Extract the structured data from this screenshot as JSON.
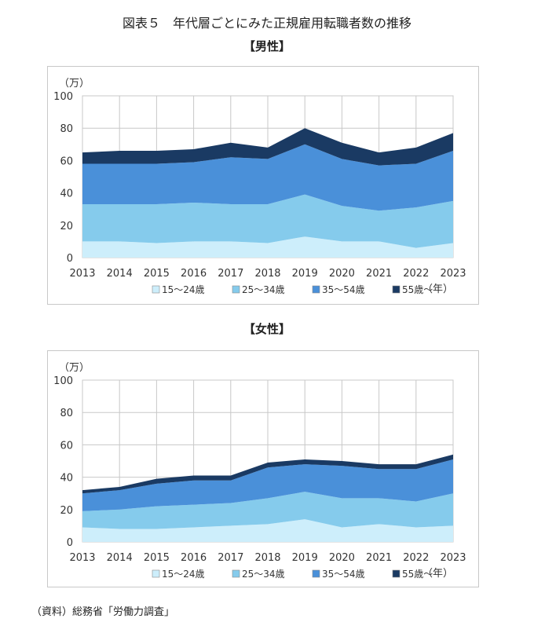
{
  "page": {
    "title": "図表５　年代層ごとにみた正規雇用転職者数の推移",
    "source": "（資料）総務省「労働力調査」"
  },
  "colors": {
    "15~24": "#cdeefb",
    "25~34": "#85cbec",
    "35~54": "#4a90d9",
    "55+": "#1a3a63",
    "grid": "#c8c8c8"
  },
  "chart_data": [
    {
      "type": "area",
      "stacked": true,
      "title": "【男性】",
      "unit_label": "（万）",
      "x_unit_label": "（年）",
      "categories": [
        "2013",
        "2014",
        "2015",
        "2016",
        "2017",
        "2018",
        "2019",
        "2020",
        "2021",
        "2022",
        "2023"
      ],
      "ylim": [
        0,
        100
      ],
      "yticks": [
        0,
        20,
        40,
        60,
        80,
        100
      ],
      "grid": true,
      "legend_position": "bottom",
      "series": [
        {
          "name": "15～24歳",
          "key": "15~24",
          "values": [
            10,
            10,
            9,
            10,
            10,
            9,
            13,
            10,
            10,
            6,
            9
          ]
        },
        {
          "name": "25～34歳",
          "key": "25~34",
          "values": [
            23,
            23,
            24,
            24,
            23,
            24,
            26,
            22,
            19,
            25,
            26
          ]
        },
        {
          "name": "35～54歳",
          "key": "35~54",
          "values": [
            25,
            25,
            25,
            25,
            29,
            28,
            31,
            29,
            28,
            27,
            31
          ]
        },
        {
          "name": "55歳～",
          "key": "55+",
          "values": [
            7,
            8,
            8,
            8,
            9,
            7,
            10,
            10,
            8,
            10,
            11
          ]
        }
      ]
    },
    {
      "type": "area",
      "stacked": true,
      "title": "【女性】",
      "unit_label": "（万）",
      "x_unit_label": "（年）",
      "categories": [
        "2013",
        "2014",
        "2015",
        "2016",
        "2017",
        "2018",
        "2019",
        "2020",
        "2021",
        "2022",
        "2023"
      ],
      "ylim": [
        0,
        100
      ],
      "yticks": [
        0,
        20,
        40,
        60,
        80,
        100
      ],
      "grid": true,
      "legend_position": "bottom",
      "series": [
        {
          "name": "15～24歳",
          "key": "15~24",
          "values": [
            9,
            8,
            8,
            9,
            10,
            11,
            14,
            9,
            11,
            9,
            10
          ]
        },
        {
          "name": "25～34歳",
          "key": "25~34",
          "values": [
            10,
            12,
            14,
            14,
            14,
            16,
            17,
            18,
            16,
            16,
            20
          ]
        },
        {
          "name": "35～54歳",
          "key": "35~54",
          "values": [
            11,
            12,
            14,
            15,
            14,
            19,
            17,
            20,
            18,
            20,
            21
          ]
        },
        {
          "name": "55歳～",
          "key": "55+",
          "values": [
            2,
            2,
            3,
            3,
            3,
            3,
            3,
            3,
            3,
            3,
            3
          ]
        }
      ]
    }
  ]
}
